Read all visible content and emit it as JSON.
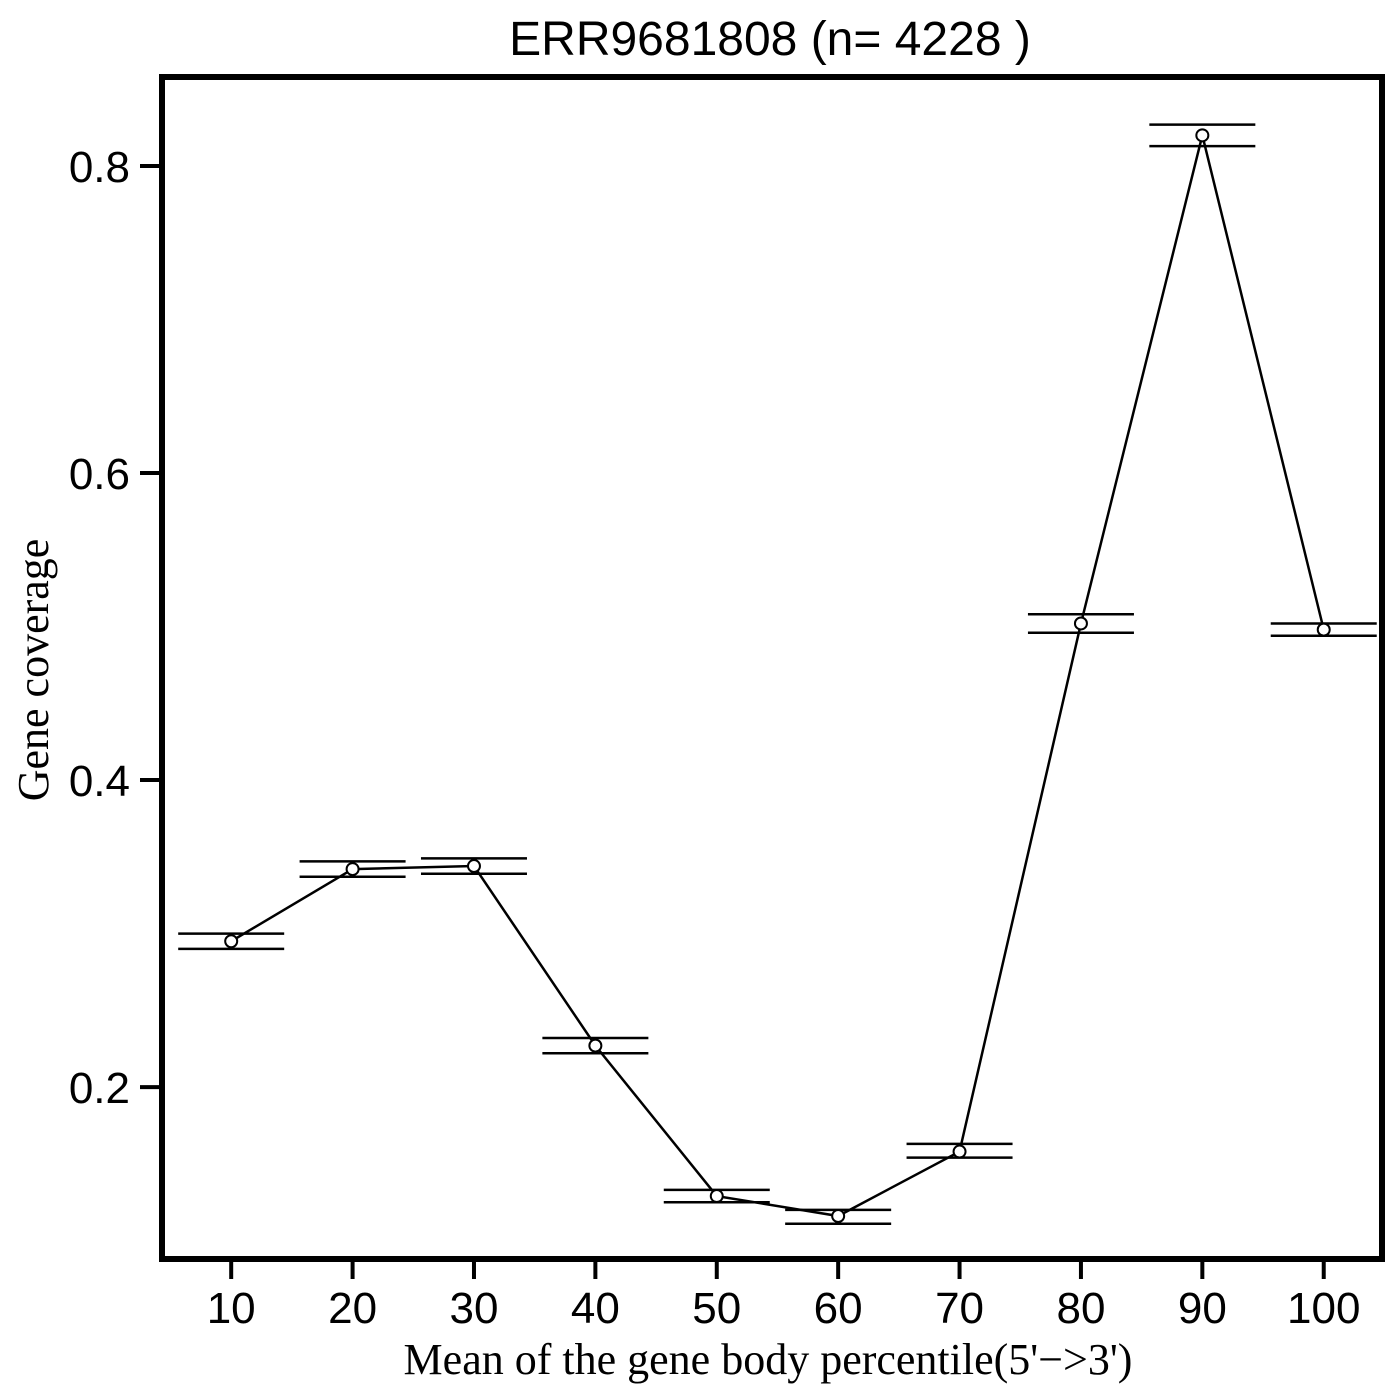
{
  "chart_data": {
    "type": "line",
    "title": "ERR9681808 (n= 4228 )",
    "xlabel": "Mean of the gene body percentile(5'−>3')",
    "ylabel": "Gene coverage",
    "x": [
      10,
      20,
      30,
      40,
      50,
      60,
      70,
      80,
      90,
      100
    ],
    "x_tick_labels": [
      "10",
      "20",
      "30",
      "40",
      "50",
      "60",
      "70",
      "80",
      "90",
      "100"
    ],
    "y_ticks": [
      0.2,
      0.4,
      0.6,
      0.8
    ],
    "y_tick_labels": [
      "0.2",
      "0.4",
      "0.6",
      "0.8"
    ],
    "xlim": [
      4.3,
      104.8
    ],
    "ylim": [
      0.088,
      0.858
    ],
    "series": [
      {
        "values": [
          0.295,
          0.342,
          0.344,
          0.227,
          0.129,
          0.116,
          0.158,
          0.502,
          0.82,
          0.498
        ],
        "error_low": [
          0.29,
          0.337,
          0.339,
          0.222,
          0.125,
          0.111,
          0.154,
          0.496,
          0.813,
          0.494
        ],
        "error_high": [
          0.3,
          0.347,
          0.349,
          0.232,
          0.133,
          0.12,
          0.163,
          0.508,
          0.827,
          0.502
        ]
      }
    ],
    "grid": false,
    "legend": "none",
    "colors": {
      "line": "#000000",
      "marker_fill": "#ffffff",
      "axis": "#000000"
    }
  }
}
